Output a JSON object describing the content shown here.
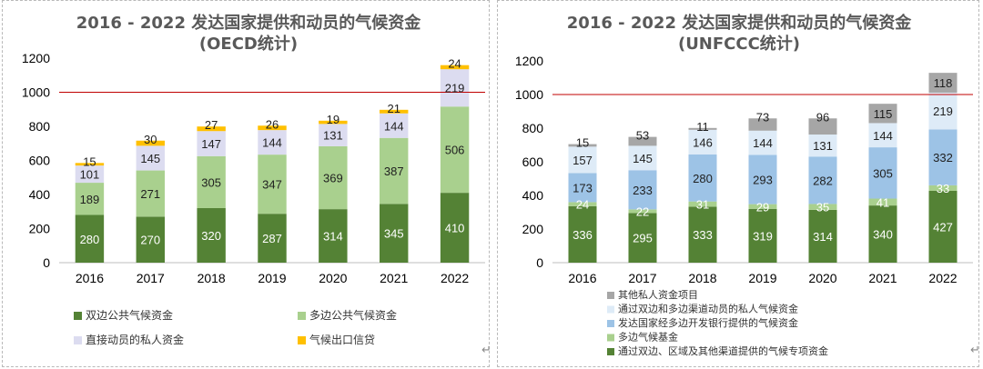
{
  "chart_data": [
    {
      "type": "bar",
      "stacked": true,
      "title": [
        "2016 - 2022 发达国家提供和动员的气候资金",
        "(OECD统计)"
      ],
      "categories": [
        "2016",
        "2017",
        "2018",
        "2019",
        "2020",
        "2021",
        "2022"
      ],
      "ylim": [
        0,
        1200
      ],
      "yticks": [
        0,
        200,
        400,
        600,
        800,
        1000,
        1200
      ],
      "reference_line": 1000,
      "series": [
        {
          "name": "双边公共气候资金",
          "color": "#548235",
          "label_color": "#ffffff",
          "values": [
            280,
            270,
            320,
            287,
            314,
            345,
            410
          ]
        },
        {
          "name": "多边公共气候资金",
          "color": "#a9d08e",
          "label_color": "#1f1f1f",
          "values": [
            189,
            271,
            305,
            347,
            369,
            387,
            506
          ]
        },
        {
          "name": "直接动员的私人资金",
          "color": "#dcdcf0",
          "label_color": "#1f1f1f",
          "values": [
            101,
            145,
            147,
            144,
            131,
            144,
            219
          ]
        },
        {
          "name": "气候出口信贷",
          "color": "#ffc000",
          "label_color": "#1f1f1f",
          "values": [
            15,
            30,
            27,
            26,
            19,
            21,
            24
          ]
        }
      ],
      "legend": {
        "placement": "bottom",
        "columns": 2
      }
    },
    {
      "type": "bar",
      "stacked": true,
      "title": [
        "2016 - 2022 发达国家提供和动员的气候资金",
        "(UNFCCC统计)"
      ],
      "categories": [
        "2016",
        "2017",
        "2018",
        "2019",
        "2020",
        "2021",
        "2022"
      ],
      "ylim": [
        0,
        1200
      ],
      "yticks": [
        0,
        200,
        400,
        600,
        800,
        1000,
        1200
      ],
      "reference_line": 1000,
      "series": [
        {
          "name": "通过双边、区域及其他渠道提供的气候专项资金",
          "color": "#548235",
          "label_color": "#ffffff",
          "values": [
            336,
            295,
            333,
            319,
            314,
            340,
            427
          ]
        },
        {
          "name": "多边气候基金",
          "color": "#a9d08e",
          "label_color": "#ffffff",
          "values": [
            24,
            22,
            31,
            29,
            35,
            41,
            33
          ]
        },
        {
          "name": "发达国家经多边开发银行提供的气候资金",
          "color": "#9dc3e6",
          "label_color": "#1f1f1f",
          "values": [
            173,
            233,
            280,
            293,
            282,
            305,
            332
          ]
        },
        {
          "name": "通过双边和多边渠道动员的私人气候资金",
          "color": "#deebf7",
          "label_color": "#1f1f1f",
          "values": [
            157,
            145,
            146,
            144,
            131,
            144,
            219
          ]
        },
        {
          "name": "其他私人资金项目",
          "color": "#a6a6a6",
          "label_color": "#1f1f1f",
          "values": [
            15,
            53,
            11,
            73,
            96,
            115,
            118
          ]
        }
      ],
      "legend": {
        "placement": "bottom",
        "columns": 1,
        "order": "reverse"
      }
    }
  ],
  "return_mark": "↵"
}
